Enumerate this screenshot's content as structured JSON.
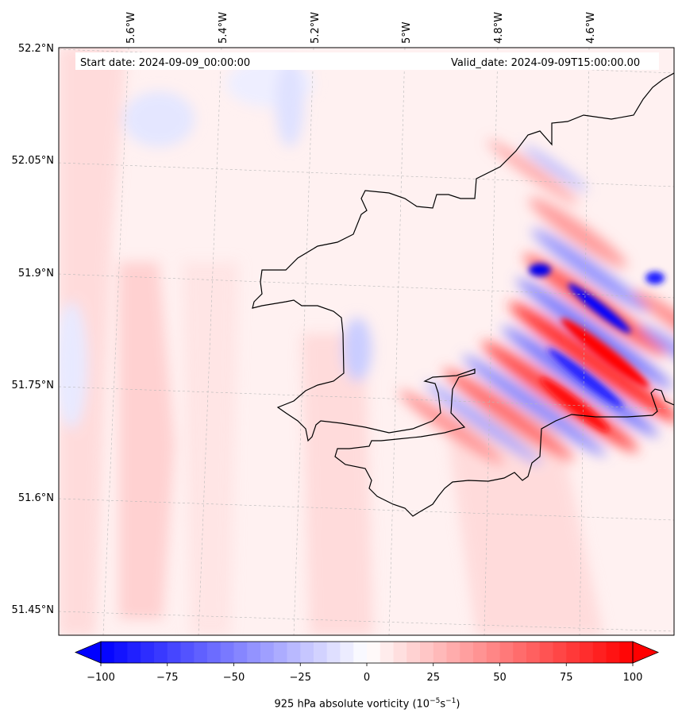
{
  "map": {
    "start_label": "Start date: 2024-09-09_00:00:00",
    "valid_label": "Valid_date: 2024-09-09T15:00:00.00",
    "lon_ticks": [
      "5.6°W",
      "5.4°W",
      "5.2°W",
      "5°W",
      "4.8°W",
      "4.6°W"
    ],
    "lat_ticks": [
      "52.2°N",
      "52.05°N",
      "51.9°N",
      "51.75°N",
      "51.6°N",
      "51.45°N"
    ],
    "extent": {
      "lon": [
        -5.75,
        -4.4
      ],
      "lat": [
        51.42,
        52.2
      ]
    },
    "field": "925 hPa absolute vorticity"
  },
  "colorbar": {
    "ticks": [
      "−100",
      "−75",
      "−50",
      "−25",
      "0",
      "25",
      "50",
      "75",
      "100"
    ],
    "values": [
      -100,
      -75,
      -50,
      -25,
      0,
      25,
      50,
      75,
      100
    ],
    "label_prefix": "925 hPa absolute vorticity (10",
    "label_exp1": "−5",
    "label_mid": "s",
    "label_exp2": "−1",
    "label_suffix": ")",
    "cmap": {
      "min_color": "#0000ff",
      "mid_color": "#ffffff",
      "max_color": "#ff0000"
    },
    "extend": "both"
  },
  "colors": {
    "coastline": "#000000",
    "gridline": "#b0b0b0"
  }
}
